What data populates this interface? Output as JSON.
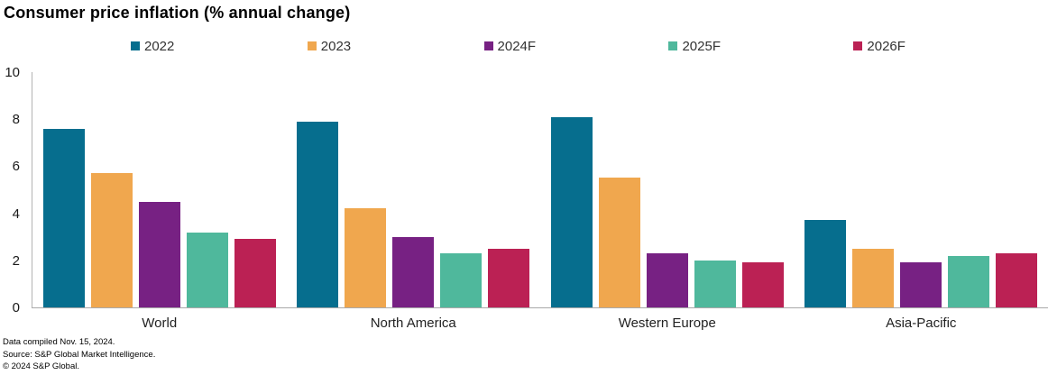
{
  "title": "Consumer price inflation (% annual change)",
  "footer": {
    "compiled": "Data compiled Nov. 15, 2024.",
    "source": "Source: S&P Global Market Intelligence.",
    "copyright": "© 2024 S&P Global."
  },
  "chart_data": {
    "type": "bar",
    "title": "Consumer price inflation (% annual change)",
    "categories": [
      "World",
      "North America",
      "Western Europe",
      "Asia-Pacific"
    ],
    "series": [
      {
        "name": "2022",
        "color": "#066e8e",
        "values": [
          7.6,
          7.9,
          8.1,
          3.7
        ]
      },
      {
        "name": "2023",
        "color": "#f0a74e",
        "values": [
          5.7,
          4.2,
          5.5,
          2.5
        ]
      },
      {
        "name": "2024F",
        "color": "#772183",
        "values": [
          4.5,
          3.0,
          2.3,
          1.9
        ]
      },
      {
        "name": "2025F",
        "color": "#4fb89c",
        "values": [
          3.2,
          2.3,
          2.0,
          2.2
        ]
      },
      {
        "name": "2026F",
        "color": "#bb2154",
        "values": [
          2.9,
          2.5,
          1.9,
          2.3
        ]
      }
    ],
    "xlabel": "",
    "ylabel": "",
    "ylim": [
      0,
      10
    ],
    "yticks": [
      0,
      2,
      4,
      6,
      8,
      10
    ],
    "grid": false,
    "legend_position": "top",
    "axis_color": "#b3b3b3"
  }
}
